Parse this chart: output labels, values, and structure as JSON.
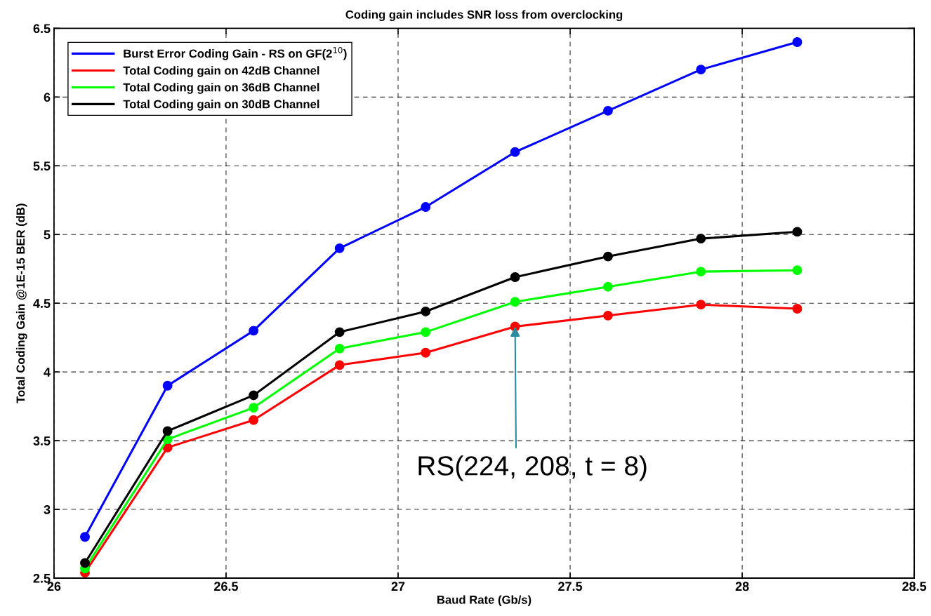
{
  "chart_data": {
    "type": "line",
    "title": "Coding gain includes SNR loss from overclocking",
    "xlabel": "Baud Rate (Gb/s)",
    "ylabel": "Total Coding Gain @1E-15 BER (dB)",
    "x": [
      26.09,
      26.33,
      26.58,
      26.83,
      27.08,
      27.34,
      27.61,
      27.88,
      28.16
    ],
    "series": [
      {
        "name": "Burst Error Coding Gain - RS on GF(2$^{10}$)",
        "color": "#0000ff",
        "values": [
          2.8,
          3.9,
          4.3,
          4.9,
          5.2,
          5.6,
          5.9,
          6.2,
          6.4
        ]
      },
      {
        "name": "Total Coding gain on 42dB Channel",
        "color": "#ff0000",
        "values": [
          2.54,
          3.45,
          3.65,
          4.05,
          4.14,
          4.33,
          4.41,
          4.49,
          4.46
        ]
      },
      {
        "name": "Total Coding gain on 36dB Channel",
        "color": "#00ff00",
        "values": [
          2.57,
          3.51,
          3.74,
          4.17,
          4.29,
          4.51,
          4.62,
          4.73,
          4.74
        ]
      },
      {
        "name": "Total Coding gain on 30dB Channel",
        "color": "#000000",
        "values": [
          2.61,
          3.57,
          3.83,
          4.29,
          4.44,
          4.69,
          4.84,
          4.97,
          5.02
        ]
      }
    ],
    "annotations": [
      {
        "text": "RS(224, 208, t = 8)",
        "x": 27.34,
        "y": 4.33
      }
    ],
    "xlim": [
      26,
      28.5
    ],
    "xticks": [
      26,
      26.5,
      27,
      27.5,
      28,
      28.5
    ],
    "ylim": [
      2.5,
      6.5
    ],
    "yticks": [
      2.5,
      3,
      3.5,
      4,
      4.5,
      5,
      5.5,
      6,
      6.5
    ],
    "grid": true,
    "legend": "top left",
    "marker": "circle",
    "line_style": "solid"
  }
}
